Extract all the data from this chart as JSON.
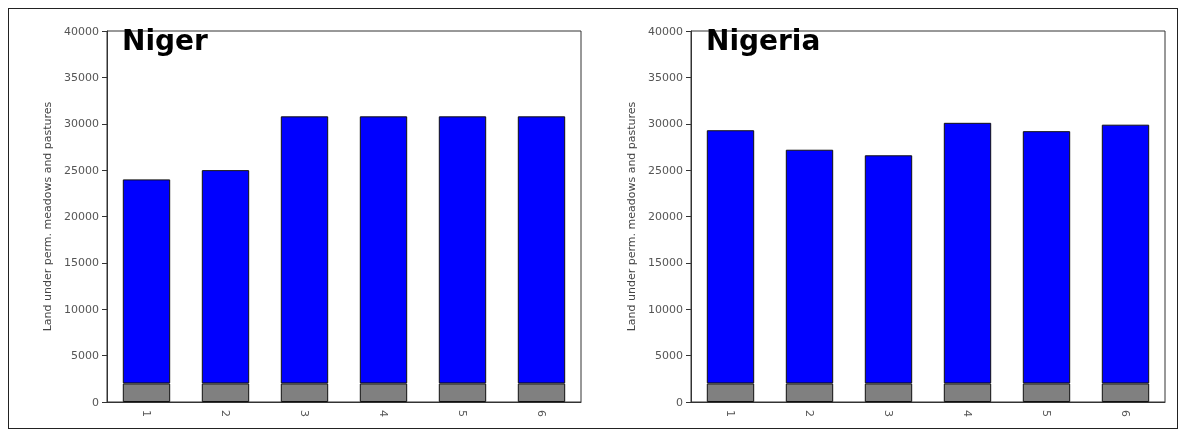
{
  "chart_data": [
    {
      "type": "bar",
      "title": "Niger",
      "ylabel": "Land under perm. meadows and pastures",
      "categories": [
        "1",
        "2",
        "3",
        "4",
        "5",
        "6"
      ],
      "stacked": true,
      "series": [
        {
          "color": "#808080",
          "values": [
            2000,
            2000,
            2000,
            2000,
            2000,
            2000
          ]
        },
        {
          "color": "#0000ff",
          "values": [
            22000,
            23000,
            28800,
            28800,
            28800,
            28800
          ]
        }
      ],
      "ylim": [
        0,
        40000
      ],
      "yticks": [
        0,
        5000,
        10000,
        15000,
        20000,
        25000,
        30000,
        35000,
        40000
      ],
      "grid": false
    },
    {
      "type": "bar",
      "title": "Nigeria",
      "ylabel": "Land under perm. meadows and pastures",
      "categories": [
        "1",
        "2",
        "3",
        "4",
        "5",
        "6"
      ],
      "stacked": true,
      "series": [
        {
          "color": "#808080",
          "values": [
            2000,
            2000,
            2000,
            2000,
            2000,
            2000
          ]
        },
        {
          "color": "#0000ff",
          "values": [
            27300,
            25200,
            24600,
            28100,
            27200,
            27900
          ]
        }
      ],
      "ylim": [
        0,
        40000
      ],
      "yticks": [
        0,
        5000,
        10000,
        15000,
        20000,
        25000,
        30000,
        35000,
        40000
      ],
      "grid": false
    }
  ]
}
